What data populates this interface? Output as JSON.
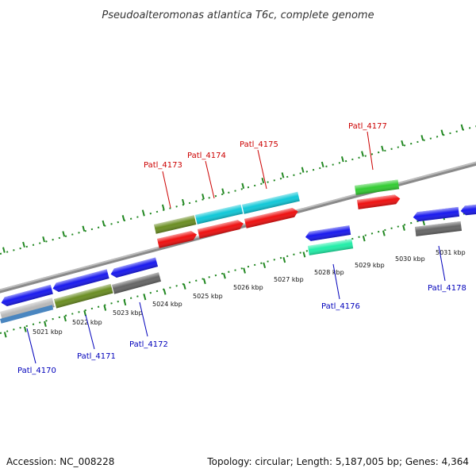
{
  "title": "Pseudoalteromonas atlantica T6c, complete genome",
  "footer": {
    "accession": "Accession: NC_008228",
    "summary": "Topology: circular; Length: 5,187,005 bp; Genes: 4,364"
  },
  "colors": {
    "forward_label": "#cc0000",
    "reverse_label": "#0000bb",
    "backbone": "#8a8a8a",
    "ticks": "#228822",
    "blue": "#1a1aee",
    "red": "#ee1111",
    "olive": "#6b8e23",
    "cyan": "#11c8d8",
    "green": "#33cc33",
    "mint": "#22eea8",
    "gray": "#666666",
    "lightgray": "#b8b8b8",
    "steelblue": "#4a86c0"
  },
  "scale_labels": [
    "5021 kbp",
    "5022 kbp",
    "5023 kbp",
    "5024 kbp",
    "5025 kbp",
    "5026 kbp",
    "5027 kbp",
    "5028 kbp",
    "5029 kbp",
    "5030 kbp",
    "5031 kbp"
  ],
  "forward_genes": [
    "Patl_4173",
    "Patl_4174",
    "Patl_4175",
    "Patl_4177"
  ],
  "reverse_genes": [
    "Patl_4170",
    "Patl_4171",
    "Patl_4172",
    "Patl_4176",
    "Patl_4178"
  ]
}
